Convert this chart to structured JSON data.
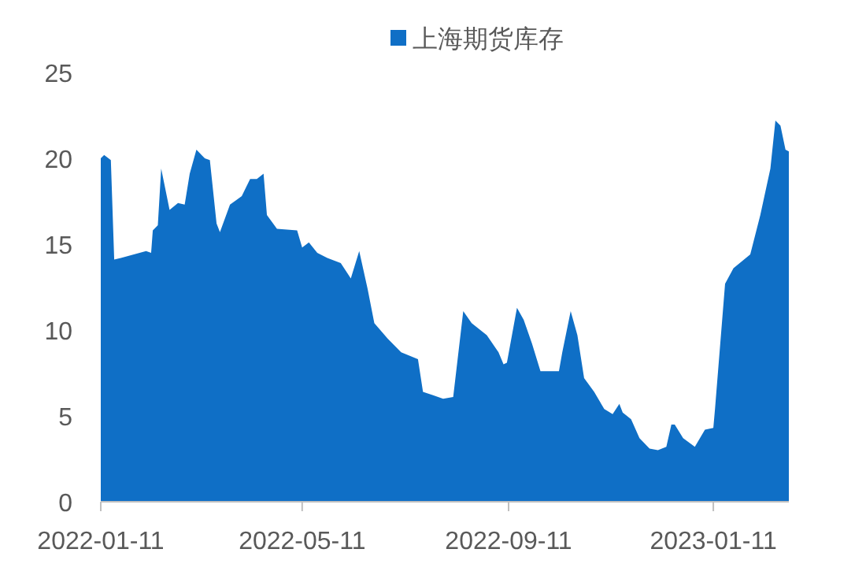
{
  "chart_data": {
    "type": "area",
    "legend": "top",
    "x": [
      "2022-01-11",
      "2022-01-13",
      "2022-01-17",
      "2022-01-19",
      "2022-01-23",
      "2022-02-07",
      "2022-02-10",
      "2022-02-11",
      "2022-02-14",
      "2022-02-16",
      "2022-02-21",
      "2022-02-26",
      "2022-03-02",
      "2022-03-05",
      "2022-03-09",
      "2022-03-14",
      "2022-03-17",
      "2022-03-21",
      "2022-03-23",
      "2022-03-29",
      "2022-04-05",
      "2022-04-10",
      "2022-04-14",
      "2022-04-18",
      "2022-04-20",
      "2022-04-26",
      "2022-05-08",
      "2022-05-11",
      "2022-05-15",
      "2022-05-20",
      "2022-05-26",
      "2022-06-03",
      "2022-06-09",
      "2022-06-14",
      "2022-06-19",
      "2022-06-23",
      "2022-07-01",
      "2022-07-09",
      "2022-07-19",
      "2022-07-22",
      "2022-07-28",
      "2022-08-03",
      "2022-08-09",
      "2022-08-15",
      "2022-08-20",
      "2022-08-29",
      "2022-09-05",
      "2022-09-08",
      "2022-09-10",
      "2022-09-16",
      "2022-09-20",
      "2022-09-25",
      "2022-09-30",
      "2022-10-11",
      "2022-10-13",
      "2022-10-18",
      "2022-10-22",
      "2022-10-26",
      "2022-11-01",
      "2022-11-07",
      "2022-11-12",
      "2022-11-16",
      "2022-11-18",
      "2022-11-23",
      "2022-11-28",
      "2022-12-04",
      "2022-12-09",
      "2022-12-14",
      "2022-12-17",
      "2022-12-19",
      "2022-12-24",
      "2022-12-31",
      "2023-01-06",
      "2023-01-11",
      "2023-01-12",
      "2023-01-18",
      "2023-01-23",
      "2023-02-02",
      "2023-02-08",
      "2023-02-14",
      "2023-02-17",
      "2023-02-20",
      "2023-02-23",
      "2023-02-25"
    ],
    "series": [
      {
        "name": "上海期货库存",
        "color": "#0f6fc6",
        "values": [
          20.0,
          20.2,
          19.9,
          14.1,
          14.2,
          14.6,
          14.5,
          15.8,
          16.1,
          19.4,
          17.0,
          17.4,
          17.3,
          19.1,
          20.5,
          20.0,
          19.9,
          16.2,
          15.7,
          17.3,
          17.8,
          18.8,
          18.8,
          19.1,
          16.7,
          15.9,
          15.8,
          14.8,
          15.1,
          14.5,
          14.2,
          13.9,
          13.0,
          14.6,
          12.4,
          10.4,
          9.5,
          8.7,
          8.3,
          6.4,
          6.2,
          6.0,
          6.1,
          11.1,
          10.4,
          9.7,
          8.7,
          8.0,
          8.1,
          11.3,
          10.6,
          9.2,
          7.6,
          7.6,
          8.7,
          11.1,
          9.7,
          7.2,
          6.4,
          5.4,
          5.1,
          5.7,
          5.2,
          4.8,
          3.7,
          3.1,
          3.0,
          3.2,
          4.5,
          4.5,
          3.7,
          3.2,
          4.2,
          4.3,
          5.4,
          12.7,
          13.6,
          14.4,
          16.7,
          19.4,
          22.2,
          21.9,
          20.5,
          20.4
        ]
      }
    ],
    "xlim": [
      "2022-01-11",
      "2023-02-25"
    ],
    "xticks": [
      "2022-01-11",
      "2022-05-11",
      "2022-09-11",
      "2023-01-11"
    ],
    "ylim": [
      0,
      25
    ],
    "yticks": [
      0,
      5,
      10,
      15,
      20,
      25
    ],
    "grid": false
  }
}
